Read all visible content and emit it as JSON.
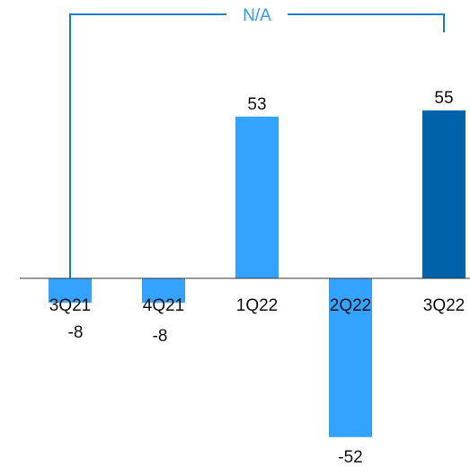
{
  "chart_data": {
    "type": "bar",
    "categories": [
      "3Q21",
      "4Q21",
      "1Q22",
      "2Q22",
      "3Q22"
    ],
    "values": [
      -8,
      -8,
      53,
      -52,
      55
    ],
    "value_labels": [
      "-8",
      "-8",
      "53",
      "-52",
      "55"
    ],
    "bar_colors": [
      "#33a3ff",
      "#33a3ff",
      "#33a3ff",
      "#33a3ff",
      "#0062a8"
    ],
    "bracket": {
      "label": "N/A",
      "from_category": "3Q21",
      "to_category": "3Q22",
      "color": "#1a7fd6"
    },
    "ylim": [
      -60,
      72
    ],
    "title": "",
    "xlabel": "",
    "ylabel": "",
    "grid": false,
    "legend": "none"
  }
}
